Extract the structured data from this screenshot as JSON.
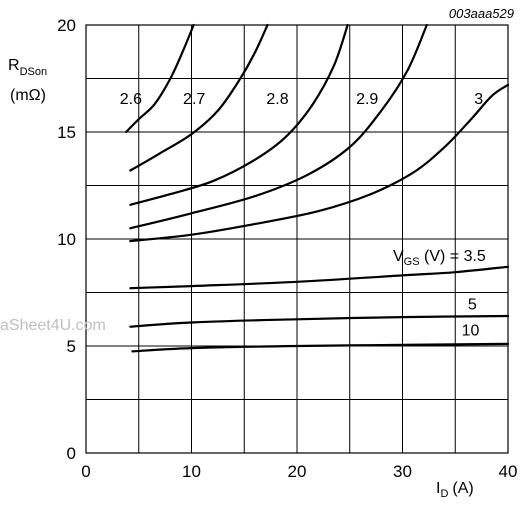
{
  "figure_code": "003aaa529",
  "watermark": "aSheet4U.com",
  "chart_data": {
    "type": "line",
    "ylabel": {
      "main": "R",
      "sub": "DSon",
      "unit": "(mΩ)"
    },
    "xlabel": {
      "main": "I",
      "sub": "D",
      "unit": "(A)"
    },
    "xlim": [
      0,
      40
    ],
    "ylim": [
      0,
      20
    ],
    "x_ticks": [
      0,
      10,
      20,
      30,
      40
    ],
    "y_ticks": [
      0,
      5,
      10,
      15,
      20
    ],
    "grid": true,
    "legend_prefix": {
      "main": "V",
      "sub": "GS",
      "rest": " (V) = 3.5"
    },
    "series": [
      {
        "name": "2.6",
        "x": [
          3.8,
          5,
          6.5,
          8,
          9.2,
          10.2
        ],
        "y": [
          15.0,
          15.6,
          16.3,
          17.5,
          18.8,
          20.0
        ]
      },
      {
        "name": "2.7",
        "x": [
          4.2,
          7,
          10,
          12.5,
          14.5,
          16,
          17.2
        ],
        "y": [
          13.2,
          14.0,
          14.9,
          16.0,
          17.4,
          18.7,
          20.0
        ]
      },
      {
        "name": "2.8",
        "x": [
          4.2,
          8,
          12,
          16,
          19,
          21.5,
          23.5,
          24.8
        ],
        "y": [
          11.6,
          12.1,
          12.7,
          13.7,
          14.8,
          16.3,
          18.1,
          20.0
        ]
      },
      {
        "name": "2.9",
        "x": [
          4.2,
          10,
          16,
          21,
          25,
          28,
          30.5,
          32.3
        ],
        "y": [
          10.5,
          11.2,
          12.0,
          13.0,
          14.3,
          16.0,
          17.9,
          20.0
        ]
      },
      {
        "name": "3",
        "x": [
          4.2,
          10,
          16,
          22,
          27,
          31,
          34,
          36.5,
          38.5,
          40
        ],
        "y": [
          9.9,
          10.2,
          10.7,
          11.3,
          12.1,
          13.1,
          14.3,
          15.6,
          16.7,
          17.2
        ]
      },
      {
        "name": "3.5",
        "x": [
          4.2,
          10,
          20,
          30,
          35,
          40
        ],
        "y": [
          7.7,
          7.8,
          8.0,
          8.3,
          8.45,
          8.7
        ]
      },
      {
        "name": "5",
        "x": [
          4.2,
          10,
          20,
          30,
          40
        ],
        "y": [
          5.9,
          6.1,
          6.25,
          6.35,
          6.4
        ]
      },
      {
        "name": "10",
        "x": [
          4.4,
          10,
          20,
          30,
          40
        ],
        "y": [
          4.75,
          4.9,
          5.0,
          5.05,
          5.1
        ]
      }
    ]
  }
}
